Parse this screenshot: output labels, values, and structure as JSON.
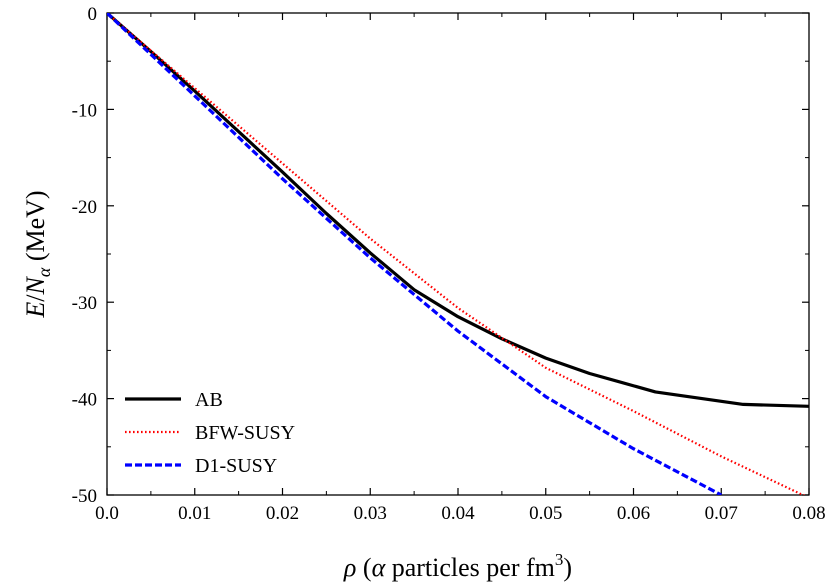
{
  "chart_data": {
    "type": "line",
    "title": "",
    "xlabel": {
      "symbol": "ρ",
      "open": " (",
      "alpha": "α",
      "text": " particles per fm",
      "sup": "3",
      "close": ")"
    },
    "ylabel": {
      "e": "E",
      "slash": "/",
      "n": "N",
      "sub": "α",
      "unit": " (MeV)"
    },
    "xlim": [
      0.0,
      0.08
    ],
    "ylim": [
      -50,
      0
    ],
    "xticks": [
      0.0,
      0.01,
      0.02,
      0.03,
      0.04,
      0.05,
      0.06,
      0.07,
      0.08
    ],
    "xtick_labels": [
      "0.0",
      "0.01",
      "0.02",
      "0.03",
      "0.04",
      "0.05",
      "0.06",
      "0.07",
      "0.08"
    ],
    "yticks": [
      0,
      -10,
      -20,
      -30,
      -40,
      -50
    ],
    "ytick_labels": [
      "0",
      "-10",
      "-20",
      "-30",
      "-40",
      "-50"
    ],
    "grid": false,
    "legend_position": "bottom-left",
    "series": [
      {
        "name": "AB",
        "color": "#000000",
        "style": "solid",
        "x": [
          0.0,
          0.005,
          0.01,
          0.015,
          0.02,
          0.025,
          0.03,
          0.035,
          0.04,
          0.045,
          0.05,
          0.055,
          0.0625,
          0.0725,
          0.08
        ],
        "y": [
          0.0,
          -4.0,
          -8.1,
          -12.3,
          -16.5,
          -20.8,
          -24.9,
          -28.7,
          -31.5,
          -33.8,
          -35.8,
          -37.4,
          -39.3,
          -40.6,
          -40.8
        ]
      },
      {
        "name": "BFW-SUSY",
        "color": "#ff0000",
        "style": "dotted",
        "x": [
          0.0,
          0.01,
          0.02,
          0.03,
          0.04,
          0.05,
          0.06,
          0.07,
          0.08
        ],
        "y": [
          0.0,
          -7.8,
          -15.6,
          -23.4,
          -30.6,
          -36.8,
          -41.3,
          -46.0,
          -50.3
        ]
      },
      {
        "name": "D1-SUSY",
        "color": "#0000ff",
        "style": "dashed",
        "x": [
          0.0,
          0.01,
          0.02,
          0.03,
          0.04,
          0.05,
          0.06,
          0.07
        ],
        "y": [
          0.0,
          -8.6,
          -17.2,
          -25.4,
          -33.0,
          -39.8,
          -45.2,
          -50.0
        ]
      }
    ]
  }
}
